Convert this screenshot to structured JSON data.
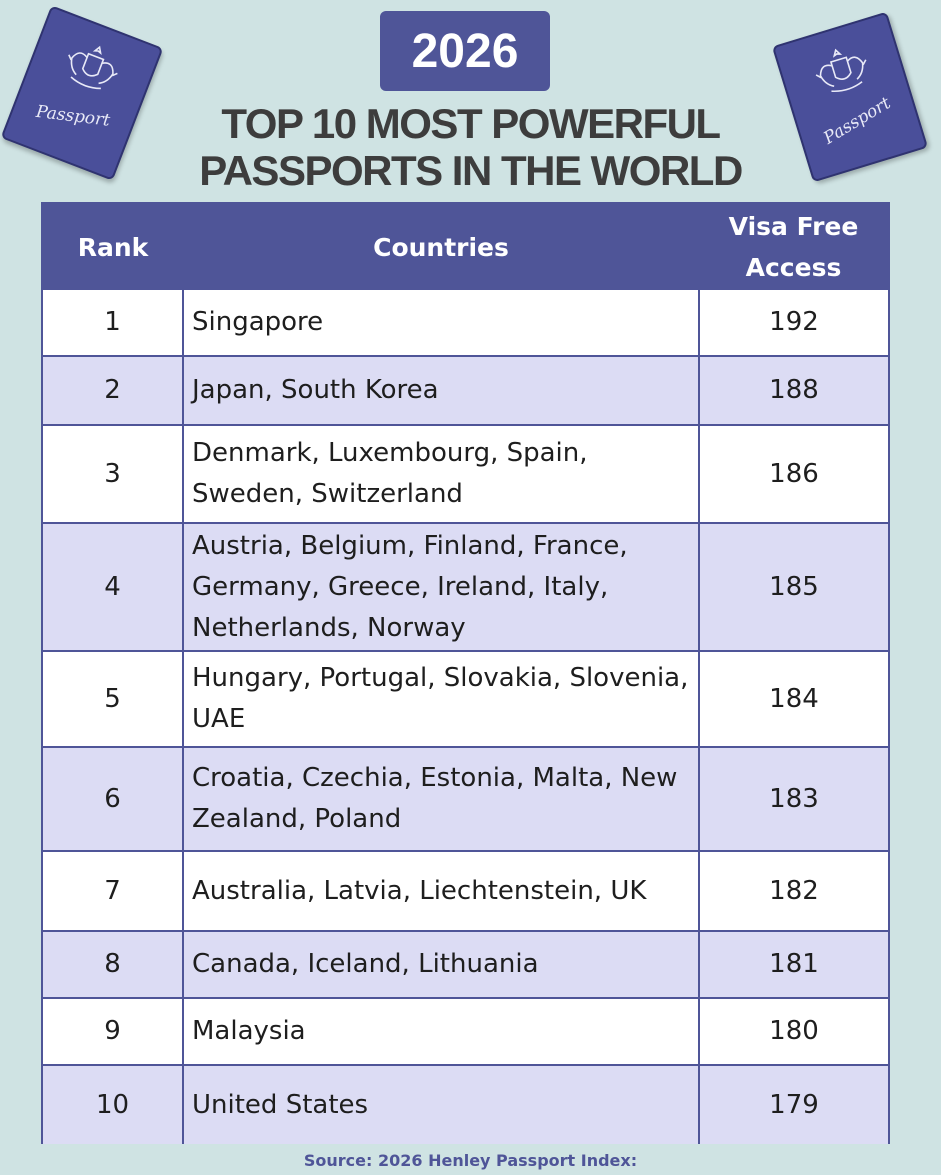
{
  "header": {
    "year": "2026",
    "title_line1": "TOP 10 MOST  POWERFUL",
    "title_line2": "PASSPORTS IN THE WORLD"
  },
  "passport_icon_label": "Passport",
  "table": {
    "columns": [
      "Rank",
      "Countries",
      "Visa Free Access"
    ],
    "rows": [
      {
        "rank": "1",
        "countries": "Singapore",
        "visa_free": "192"
      },
      {
        "rank": "2",
        "countries": "Japan, South Korea",
        "visa_free": "188"
      },
      {
        "rank": "3",
        "countries": "Denmark, Luxembourg, Spain, Sweden, Switzerland",
        "visa_free": "186"
      },
      {
        "rank": "4",
        "countries": "Austria, Belgium, Finland, France, Germany, Greece, Ireland, Italy, Netherlands, Norway",
        "visa_free": "185"
      },
      {
        "rank": "5",
        "countries": "Hungary, Portugal, Slovakia, Slovenia, UAE",
        "visa_free": "184"
      },
      {
        "rank": "6",
        "countries": "Croatia, Czechia, Estonia, Malta, New Zealand, Poland",
        "visa_free": "183"
      },
      {
        "rank": "7",
        "countries": "Australia, Latvia, Liechtenstein, UK",
        "visa_free": "182"
      },
      {
        "rank": "8",
        "countries": "Canada, Iceland, Lithuania",
        "visa_free": "181"
      },
      {
        "rank": "9",
        "countries": "Malaysia",
        "visa_free": "180"
      },
      {
        "rank": "10",
        "countries": "United States",
        "visa_free": "179"
      }
    ]
  },
  "footer": {
    "source": "Source: 2026 Henley Passport Index:"
  },
  "colors": {
    "background": "#cfe3e3",
    "accent": "#4f5598",
    "row_alt": "#dcdcf4",
    "title_text": "#3d3d3d"
  }
}
